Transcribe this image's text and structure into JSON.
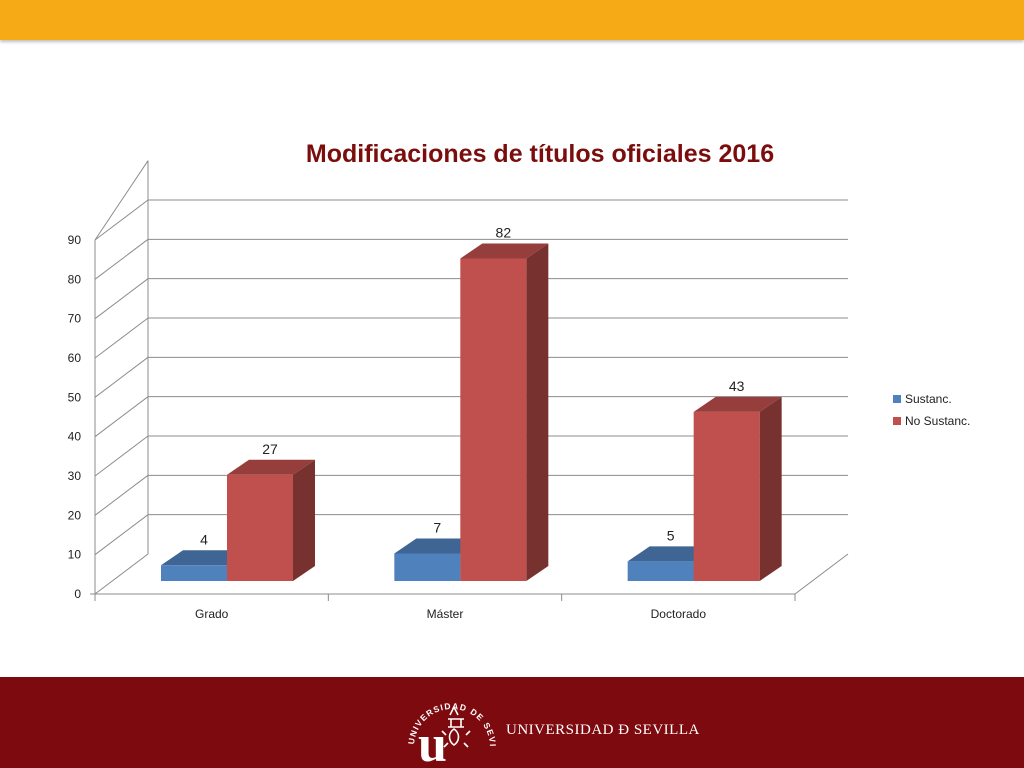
{
  "colors": {
    "top_band": "#F6AA15",
    "footer": "#7D0A0F",
    "title": "#7B0D0D",
    "series_blue": "#4F81BD",
    "series_red": "#C0504D",
    "grid": "#8C8C8C"
  },
  "footer": {
    "university_name": "UNIVERSIDAD Ð SEVILLA",
    "logo_ring_text": "UNIVERSIDAD DE SEVILLA",
    "logo_letter": "u"
  },
  "chart_data": {
    "type": "bar",
    "title": "Modificaciones de títulos oficiales 2016",
    "categories": [
      "Grado",
      "Máster",
      "Doctorado"
    ],
    "series": [
      {
        "name": "Sustanc.",
        "values": [
          4,
          7,
          5
        ],
        "color": "#4F81BD"
      },
      {
        "name": "No Sustanc.",
        "values": [
          27,
          82,
          43
        ],
        "color": "#C0504D"
      }
    ],
    "ylim": [
      0,
      90
    ],
    "y_ticks": [
      0,
      10,
      20,
      30,
      40,
      50,
      60,
      70,
      80,
      90
    ],
    "grid": true,
    "legend": "right",
    "data_labels": true,
    "three_d": true
  }
}
